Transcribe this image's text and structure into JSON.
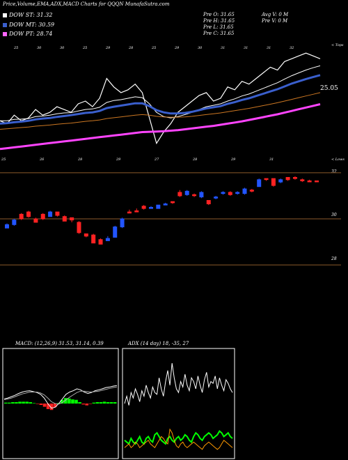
{
  "header": {
    "title": "Price,Volume,EMA,ADX,MACD Charts for QQQN",
    "site": "MunafaSutra.com"
  },
  "legend": [
    {
      "label": "DOW ST: 31.32",
      "color": "#ffffff"
    },
    {
      "label": "DOW MT: 30.59",
      "color": "#3a5fcd"
    },
    {
      "label": "DOW PT: 28.74",
      "color": "#ff66ff"
    }
  ],
  "stats": {
    "pre_o": "Pre O: 31.65",
    "pre_h": "Pre H: 31.65",
    "pre_l": "Pre L: 31.65",
    "pre_c": "Pre C: 31.65",
    "avg_v": "Avg V: 0 M",
    "pre_v": "Pre V: 0 M"
  },
  "ema_panel": {
    "top_label": "< Tops",
    "bottom_label": "< Lows",
    "price_label": "25.05",
    "top_dates": [
      "25",
      "30",
      "30",
      "25",
      "29",
      "28",
      "25",
      "29",
      "30",
      "31",
      "31",
      "31",
      "32"
    ],
    "bottom_dates": [
      "25",
      "26",
      "28",
      "29",
      "27",
      "28",
      "29",
      "31"
    ]
  },
  "chart_data": [
    {
      "type": "line",
      "name": "EMA panel",
      "series": [
        {
          "name": "price",
          "color": "#ffffff",
          "values": [
            29.9,
            29.8,
            30.1,
            29.9,
            30.0,
            30.3,
            30.1,
            30.2,
            30.4,
            30.3,
            30.2,
            30.5,
            30.6,
            30.4,
            30.7,
            31.4,
            31.1,
            30.9,
            31.0,
            31.2,
            30.9,
            30.0,
            29.1,
            29.5,
            29.8,
            30.2,
            30.4,
            30.6,
            30.8,
            30.9,
            30.6,
            30.7,
            31.1,
            31.0,
            31.3,
            31.2,
            31.4,
            31.6,
            31.8,
            31.7,
            32.0,
            32.1,
            32.2,
            32.3,
            32.2,
            32.1
          ]
        },
        {
          "name": "ema_fast",
          "color": "#ffffff",
          "values": [
            29.9,
            29.9,
            29.95,
            29.96,
            29.98,
            30.05,
            30.07,
            30.1,
            30.15,
            30.18,
            30.19,
            30.25,
            30.3,
            30.32,
            30.38,
            30.55,
            30.62,
            30.65,
            30.7,
            30.75,
            30.72,
            30.5,
            30.2,
            30.05,
            30.0,
            30.05,
            30.12,
            30.2,
            30.3,
            30.4,
            30.45,
            30.5,
            30.6,
            30.68,
            30.78,
            30.85,
            30.95,
            31.05,
            31.15,
            31.25,
            31.38,
            31.5,
            31.6,
            31.7,
            31.78,
            31.85
          ]
        },
        {
          "name": "ema_mid",
          "color": "#3a5fcd",
          "values": [
            29.8,
            29.82,
            29.85,
            29.87,
            29.9,
            29.95,
            29.98,
            30.0,
            30.04,
            30.07,
            30.1,
            30.14,
            30.18,
            30.2,
            30.25,
            30.35,
            30.4,
            30.44,
            30.48,
            30.52,
            30.52,
            30.42,
            30.28,
            30.2,
            30.16,
            30.16,
            30.18,
            30.22,
            30.28,
            30.34,
            30.38,
            30.42,
            30.5,
            30.56,
            30.64,
            30.7,
            30.78,
            30.86,
            30.94,
            31.02,
            31.12,
            31.22,
            31.3,
            31.38,
            31.45,
            31.52
          ]
        },
        {
          "name": "ema_slow",
          "color": "#cc7722",
          "values": [
            29.6,
            29.62,
            29.64,
            29.66,
            29.68,
            29.71,
            29.73,
            29.75,
            29.78,
            29.8,
            29.82,
            29.85,
            29.88,
            29.9,
            29.93,
            29.98,
            30.01,
            30.04,
            30.07,
            30.1,
            30.12,
            30.1,
            30.06,
            30.04,
            30.03,
            30.03,
            30.04,
            30.06,
            30.09,
            30.12,
            30.15,
            30.18,
            30.22,
            30.26,
            30.3,
            30.34,
            30.39,
            30.44,
            30.49,
            30.54,
            30.6,
            30.66,
            30.72,
            30.78,
            30.84,
            30.9
          ]
        },
        {
          "name": "ema_long",
          "color": "#ff44ff",
          "values": [
            28.9,
            28.93,
            28.96,
            28.99,
            29.02,
            29.05,
            29.08,
            29.11,
            29.14,
            29.17,
            29.2,
            29.23,
            29.26,
            29.29,
            29.32,
            29.35,
            29.38,
            29.41,
            29.44,
            29.47,
            29.5,
            29.51,
            29.52,
            29.53,
            29.55,
            29.57,
            29.6,
            29.63,
            29.66,
            29.69,
            29.72,
            29.76,
            29.8,
            29.84,
            29.88,
            29.93,
            29.98,
            30.03,
            30.08,
            30.13,
            30.19,
            30.25,
            30.31,
            30.37,
            30.43,
            30.49
          ]
        }
      ],
      "ylim": [
        28.5,
        32.7
      ]
    },
    {
      "type": "candlestick",
      "name": "Price panel",
      "yticks": [
        "32",
        "30",
        "28"
      ],
      "ylim": [
        27.7,
        32.3
      ],
      "candles": [
        {
          "o": 29.6,
          "c": 29.75,
          "h": 29.8,
          "l": 29.6,
          "up": true
        },
        {
          "o": 29.75,
          "c": 29.95,
          "h": 30.0,
          "l": 29.7,
          "up": true
        },
        {
          "o": 30.2,
          "c": 30.0,
          "h": 30.25,
          "l": 29.95,
          "up": false
        },
        {
          "o": 30.3,
          "c": 30.1,
          "h": 30.35,
          "l": 30.05,
          "up": false
        },
        {
          "o": 30.0,
          "c": 29.85,
          "h": 30.05,
          "l": 29.85,
          "up": false
        },
        {
          "o": 30.2,
          "c": 30.0,
          "h": 30.25,
          "l": 29.95,
          "up": false
        },
        {
          "o": 30.1,
          "c": 30.3,
          "h": 30.35,
          "l": 30.1,
          "up": true
        },
        {
          "o": 30.3,
          "c": 30.15,
          "h": 30.3,
          "l": 30.1,
          "up": false
        },
        {
          "o": 30.1,
          "c": 29.9,
          "h": 30.15,
          "l": 29.9,
          "up": false
        },
        {
          "o": 30.05,
          "c": 29.95,
          "h": 30.05,
          "l": 29.85,
          "up": false
        },
        {
          "o": 29.85,
          "c": 29.4,
          "h": 29.9,
          "l": 29.35,
          "up": false
        },
        {
          "o": 29.35,
          "c": 29.25,
          "h": 29.35,
          "l": 29.2,
          "up": false
        },
        {
          "o": 29.3,
          "c": 28.95,
          "h": 29.35,
          "l": 28.95,
          "up": false
        },
        {
          "o": 29.1,
          "c": 28.9,
          "h": 29.15,
          "l": 28.9,
          "up": false
        },
        {
          "o": 29.05,
          "c": 29.15,
          "h": 29.25,
          "l": 29.05,
          "up": true
        },
        {
          "o": 29.2,
          "c": 29.65,
          "h": 29.7,
          "l": 29.2,
          "up": true
        },
        {
          "o": 29.65,
          "c": 30.0,
          "h": 30.05,
          "l": 29.6,
          "up": true
        },
        {
          "o": 30.3,
          "c": 30.25,
          "h": 30.4,
          "l": 30.25,
          "up": false
        },
        {
          "o": 30.35,
          "c": 30.3,
          "h": 30.45,
          "l": 30.3,
          "up": false
        },
        {
          "o": 30.55,
          "c": 30.45,
          "h": 30.6,
          "l": 30.4,
          "up": false
        },
        {
          "o": 30.45,
          "c": 30.5,
          "h": 30.55,
          "l": 30.45,
          "up": true
        },
        {
          "o": 30.45,
          "c": 30.6,
          "h": 30.6,
          "l": 30.45,
          "up": true
        },
        {
          "o": 30.6,
          "c": 30.65,
          "h": 30.7,
          "l": 30.6,
          "up": true
        },
        {
          "o": 30.75,
          "c": 30.7,
          "h": 30.75,
          "l": 30.65,
          "up": false
        },
        {
          "o": 31.15,
          "c": 31.0,
          "h": 31.25,
          "l": 30.95,
          "up": false
        },
        {
          "o": 31.05,
          "c": 31.2,
          "h": 31.25,
          "l": 31.0,
          "up": true
        },
        {
          "o": 31.05,
          "c": 31.05,
          "h": 31.1,
          "l": 30.95,
          "up": false
        },
        {
          "o": 30.95,
          "c": 31.15,
          "h": 31.2,
          "l": 30.9,
          "up": true
        },
        {
          "o": 30.8,
          "c": 30.65,
          "h": 30.8,
          "l": 30.6,
          "up": false
        },
        {
          "o": 30.9,
          "c": 30.95,
          "h": 31.0,
          "l": 30.85,
          "up": true
        },
        {
          "o": 31.1,
          "c": 31.15,
          "h": 31.2,
          "l": 31.05,
          "up": true
        },
        {
          "o": 31.15,
          "c": 31.05,
          "h": 31.2,
          "l": 31.0,
          "up": false
        },
        {
          "o": 31.1,
          "c": 31.15,
          "h": 31.2,
          "l": 31.05,
          "up": true
        },
        {
          "o": 31.1,
          "c": 31.3,
          "h": 31.35,
          "l": 31.05,
          "up": true
        },
        {
          "o": 31.25,
          "c": 31.2,
          "h": 31.3,
          "l": 31.15,
          "up": false
        },
        {
          "o": 31.4,
          "c": 31.7,
          "h": 31.75,
          "l": 31.4,
          "up": true
        },
        {
          "o": 31.75,
          "c": 31.75,
          "h": 31.75,
          "l": 31.65,
          "up": false
        },
        {
          "o": 31.75,
          "c": 31.45,
          "h": 31.75,
          "l": 31.4,
          "up": false
        },
        {
          "o": 31.6,
          "c": 31.7,
          "h": 31.75,
          "l": 31.55,
          "up": true
        },
        {
          "o": 31.8,
          "c": 31.7,
          "h": 31.8,
          "l": 31.65,
          "up": false
        },
        {
          "o": 31.8,
          "c": 31.75,
          "h": 31.85,
          "l": 31.7,
          "up": false
        },
        {
          "o": 31.7,
          "c": 31.65,
          "h": 31.75,
          "l": 31.6,
          "up": false
        },
        {
          "o": 31.65,
          "c": 31.65,
          "h": 31.7,
          "l": 31.6,
          "up": false
        },
        {
          "o": 31.65,
          "c": 31.65,
          "h": 31.65,
          "l": 31.65,
          "up": false
        }
      ]
    },
    {
      "type": "line",
      "name": "MACD",
      "header": "MACD: (12,26,9) 31.53, 31.14, 0.39",
      "series": [
        {
          "name": "macd",
          "color": "#ffffff",
          "values": [
            0.1,
            0.12,
            0.15,
            0.18,
            0.22,
            0.25,
            0.27,
            0.28,
            0.26,
            0.24,
            0.2,
            0.12,
            0.0,
            -0.1,
            -0.08,
            0.0,
            0.1,
            0.2,
            0.25,
            0.28,
            0.32,
            0.3,
            0.25,
            0.22,
            0.24,
            0.28,
            0.3,
            0.32,
            0.35,
            0.36,
            0.38,
            0.39
          ]
        },
        {
          "name": "signal",
          "color": "#aaaaaa",
          "values": [
            0.08,
            0.1,
            0.12,
            0.15,
            0.18,
            0.21,
            0.23,
            0.25,
            0.25,
            0.25,
            0.23,
            0.19,
            0.12,
            0.04,
            0.0,
            -0.01,
            0.02,
            0.08,
            0.14,
            0.19,
            0.24,
            0.27,
            0.27,
            0.26,
            0.25,
            0.26,
            0.27,
            0.29,
            0.31,
            0.33,
            0.35,
            0.36
          ]
        },
        {
          "name": "hist",
          "color": "#00ff00",
          "values": [
            0.02,
            0.02,
            0.03,
            0.03,
            0.04,
            0.04,
            0.04,
            0.03,
            0.01,
            -0.01,
            -0.03,
            -0.07,
            -0.12,
            -0.14,
            -0.08,
            0.01,
            0.08,
            0.12,
            0.11,
            0.09,
            0.08,
            0.03,
            -0.02,
            -0.04,
            -0.01,
            0.02,
            0.03,
            0.03,
            0.04,
            0.03,
            0.03,
            0.03
          ]
        }
      ],
      "ylim": [
        -1.2,
        1.2
      ]
    },
    {
      "type": "line",
      "name": "ADX",
      "header": "ADX (14 day) 18, -35, 27",
      "series": [
        {
          "name": "adx",
          "color": "#ffffff",
          "values": [
            30,
            34,
            29,
            36,
            33,
            38,
            35,
            31,
            37,
            34,
            40,
            36,
            33,
            39,
            36,
            35,
            44,
            38,
            34,
            42,
            48,
            40,
            52,
            44,
            38,
            36,
            42,
            39,
            46,
            40,
            37,
            44,
            42,
            38,
            45,
            40,
            36,
            43,
            47,
            39,
            42,
            41,
            45,
            38,
            44,
            40,
            37,
            43,
            41,
            38,
            36
          ]
        },
        {
          "name": "+di",
          "color": "#00ff00",
          "values": [
            10,
            9,
            8,
            11,
            9,
            8,
            10,
            12,
            9,
            8,
            11,
            12,
            10,
            9,
            13,
            14,
            12,
            10,
            9,
            8,
            11,
            12,
            10,
            9,
            11,
            12,
            10,
            11,
            13,
            12,
            10,
            9,
            12,
            14,
            13,
            11,
            10,
            12,
            13,
            14,
            13,
            11,
            12,
            13,
            15,
            14,
            12,
            13,
            14,
            12,
            11
          ]
        },
        {
          "name": "-di",
          "color": "#ff9900",
          "values": [
            6,
            7,
            8,
            6,
            7,
            9,
            8,
            6,
            7,
            8,
            9,
            10,
            8,
            7,
            6,
            8,
            10,
            12,
            11,
            9,
            8,
            16,
            14,
            10,
            7,
            6,
            8,
            9,
            7,
            6,
            7,
            8,
            9,
            8,
            7,
            6,
            5,
            7,
            8,
            9,
            8,
            7,
            6,
            5,
            6,
            8,
            10,
            9,
            8,
            7,
            6
          ]
        }
      ],
      "ylim": [
        0,
        60
      ]
    }
  ]
}
